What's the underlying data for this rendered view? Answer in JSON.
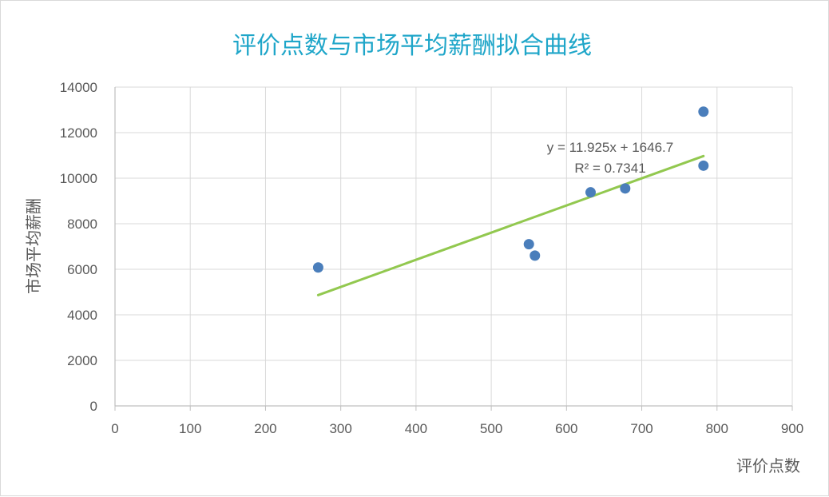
{
  "chart_data": {
    "type": "scatter",
    "title": "评价点数与市场平均薪酬拟合曲线",
    "xlabel": "评价点数",
    "ylabel": "市场平均薪酬",
    "xlim": [
      0,
      900
    ],
    "ylim": [
      0,
      14000
    ],
    "x_ticks": [
      "0",
      "100",
      "200",
      "300",
      "400",
      "500",
      "600",
      "700",
      "800",
      "900"
    ],
    "y_ticks": [
      "0",
      "2000",
      "4000",
      "6000",
      "8000",
      "10000",
      "12000",
      "14000"
    ],
    "grid": true,
    "points": [
      {
        "x": 270,
        "y": 6080
      },
      {
        "x": 550,
        "y": 7100
      },
      {
        "x": 558,
        "y": 6600
      },
      {
        "x": 632,
        "y": 9380
      },
      {
        "x": 678,
        "y": 9550
      },
      {
        "x": 782,
        "y": 12920
      },
      {
        "x": 782,
        "y": 10550
      }
    ],
    "trendline": {
      "type": "linear",
      "slope": 11.925,
      "intercept": 1646.7,
      "x_range": [
        270,
        782
      ],
      "equation_label": "y = 11.925x + 1646.7",
      "r2_label": "R² = 0.7341"
    },
    "colors": {
      "title": "#1fa6c9",
      "point": "#4a7ebb",
      "trendline": "#92c84f",
      "grid": "#d9d9d9",
      "text": "#595959"
    }
  }
}
